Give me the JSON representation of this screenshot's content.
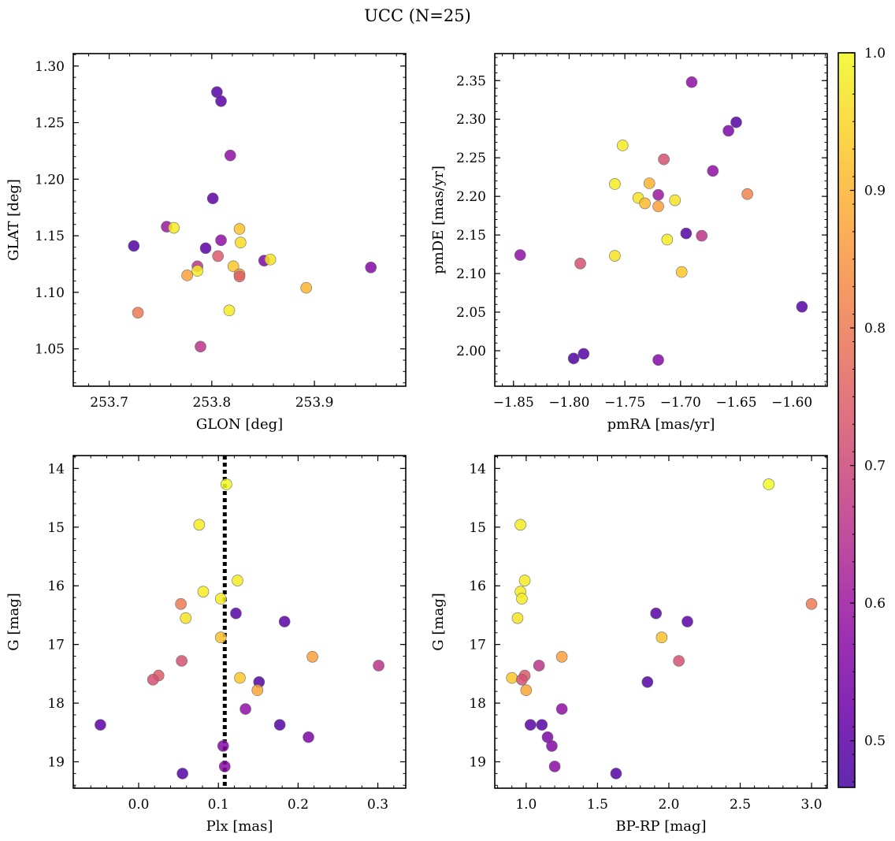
{
  "title": "UCC (N=25)",
  "colorbar": {
    "range": [
      0.466,
      1.0
    ],
    "ticks": [
      0.5,
      0.6,
      0.7,
      0.8,
      0.9,
      1.0
    ],
    "tick_labels": [
      "0.5",
      "0.6",
      "0.7",
      "0.8",
      "0.9",
      "1.0"
    ],
    "colormap": "plasma"
  },
  "chart_data": [
    {
      "type": "scatter",
      "xlabel": "GLON [deg]",
      "ylabel": "GLAT [deg]",
      "xlim": [
        253.665,
        253.989
      ],
      "ylim": [
        1.017,
        1.311
      ],
      "x_ticks": [
        253.7,
        253.8,
        253.9
      ],
      "x_tick_labels": [
        "253.7",
        "253.8",
        "253.9"
      ],
      "y_ticks": [
        1.05,
        1.1,
        1.15,
        1.2,
        1.25,
        1.3
      ],
      "y_tick_labels": [
        "1.05",
        "1.10",
        "1.15",
        "1.20",
        "1.25",
        "1.30"
      ],
      "invert_y": false,
      "points": [
        {
          "x": 253.805,
          "y": 1.277,
          "c": 0.49
        },
        {
          "x": 253.809,
          "y": 1.269,
          "c": 0.5
        },
        {
          "x": 253.818,
          "y": 1.221,
          "c": 0.58
        },
        {
          "x": 253.801,
          "y": 1.183,
          "c": 0.5
        },
        {
          "x": 253.756,
          "y": 1.158,
          "c": 0.6
        },
        {
          "x": 253.763,
          "y": 1.157,
          "c": 0.98
        },
        {
          "x": 253.827,
          "y": 1.156,
          "c": 0.92
        },
        {
          "x": 253.809,
          "y": 1.146,
          "c": 0.58
        },
        {
          "x": 253.828,
          "y": 1.144,
          "c": 0.96
        },
        {
          "x": 253.724,
          "y": 1.141,
          "c": 0.48
        },
        {
          "x": 253.794,
          "y": 1.139,
          "c": 0.5
        },
        {
          "x": 253.806,
          "y": 1.132,
          "c": 0.74
        },
        {
          "x": 253.851,
          "y": 1.128,
          "c": 0.55
        },
        {
          "x": 253.857,
          "y": 1.129,
          "c": 0.97
        },
        {
          "x": 253.786,
          "y": 1.123,
          "c": 0.66
        },
        {
          "x": 253.821,
          "y": 1.123,
          "c": 0.93
        },
        {
          "x": 253.955,
          "y": 1.122,
          "c": 0.56
        },
        {
          "x": 253.786,
          "y": 1.119,
          "c": 0.98
        },
        {
          "x": 253.827,
          "y": 1.116,
          "c": 0.85
        },
        {
          "x": 253.776,
          "y": 1.115,
          "c": 0.87
        },
        {
          "x": 253.827,
          "y": 1.114,
          "c": 0.75
        },
        {
          "x": 253.892,
          "y": 1.104,
          "c": 0.9
        },
        {
          "x": 253.817,
          "y": 1.084,
          "c": 0.98
        },
        {
          "x": 253.728,
          "y": 1.082,
          "c": 0.8
        },
        {
          "x": 253.789,
          "y": 1.052,
          "c": 0.66
        }
      ]
    },
    {
      "type": "scatter",
      "xlabel": "pmRA [mas/yr]",
      "ylabel": "pmDE [mas/yr]",
      "xlim": [
        -1.8668,
        -1.5683
      ],
      "ylim": [
        1.954,
        2.385
      ],
      "x_ticks": [
        -1.85,
        -1.8,
        -1.75,
        -1.7,
        -1.65,
        -1.6
      ],
      "x_tick_labels": [
        "−1.85",
        "−1.80",
        "−1.75",
        "−1.70",
        "−1.65",
        "−1.60"
      ],
      "y_ticks": [
        2.0,
        2.05,
        2.1,
        2.15,
        2.2,
        2.25,
        2.3,
        2.35
      ],
      "y_tick_labels": [
        "2.00",
        "2.05",
        "2.10",
        "2.15",
        "2.20",
        "2.25",
        "2.30",
        "2.35"
      ],
      "invert_y": false,
      "points": [
        {
          "x": -1.69,
          "y": 2.348,
          "c": 0.58
        },
        {
          "x": -1.65,
          "y": 2.296,
          "c": 0.49
        },
        {
          "x": -1.657,
          "y": 2.285,
          "c": 0.55
        },
        {
          "x": -1.752,
          "y": 2.266,
          "c": 0.98
        },
        {
          "x": -1.715,
          "y": 2.248,
          "c": 0.72
        },
        {
          "x": -1.671,
          "y": 2.233,
          "c": 0.58
        },
        {
          "x": -1.728,
          "y": 2.217,
          "c": 0.9
        },
        {
          "x": -1.759,
          "y": 2.216,
          "c": 0.98
        },
        {
          "x": -1.64,
          "y": 2.203,
          "c": 0.82
        },
        {
          "x": -1.72,
          "y": 2.202,
          "c": 0.6
        },
        {
          "x": -1.738,
          "y": 2.198,
          "c": 0.97
        },
        {
          "x": -1.705,
          "y": 2.195,
          "c": 0.97
        },
        {
          "x": -1.732,
          "y": 2.191,
          "c": 0.91
        },
        {
          "x": -1.72,
          "y": 2.187,
          "c": 0.87
        },
        {
          "x": -1.695,
          "y": 2.152,
          "c": 0.49
        },
        {
          "x": -1.681,
          "y": 2.149,
          "c": 0.66
        },
        {
          "x": -1.712,
          "y": 2.144,
          "c": 0.98
        },
        {
          "x": -1.844,
          "y": 2.124,
          "c": 0.58
        },
        {
          "x": -1.759,
          "y": 2.123,
          "c": 0.97
        },
        {
          "x": -1.79,
          "y": 2.113,
          "c": 0.72
        },
        {
          "x": -1.699,
          "y": 2.102,
          "c": 0.93
        },
        {
          "x": -1.591,
          "y": 2.057,
          "c": 0.49
        },
        {
          "x": -1.787,
          "y": 1.996,
          "c": 0.49
        },
        {
          "x": -1.796,
          "y": 1.99,
          "c": 0.48
        },
        {
          "x": -1.72,
          "y": 1.988,
          "c": 0.56
        }
      ]
    },
    {
      "type": "scatter",
      "xlabel": "Plx [mas]",
      "ylabel": "G [mag]",
      "xlim": [
        -0.082,
        0.335
      ],
      "ylim": [
        13.78,
        19.45
      ],
      "x_ticks": [
        0.0,
        0.1,
        0.2,
        0.3
      ],
      "x_tick_labels": [
        "0.0",
        "0.1",
        "0.2",
        "0.3"
      ],
      "y_ticks": [
        14,
        15,
        16,
        17,
        18,
        19
      ],
      "y_tick_labels": [
        "14",
        "15",
        "16",
        "17",
        "18",
        "19"
      ],
      "invert_y": true,
      "vline": 0.108,
      "points": [
        {
          "x": 0.11,
          "y": 14.27,
          "c": 1.0
        },
        {
          "x": 0.076,
          "y": 14.96,
          "c": 0.98
        },
        {
          "x": 0.124,
          "y": 15.91,
          "c": 0.98
        },
        {
          "x": 0.081,
          "y": 16.1,
          "c": 0.98
        },
        {
          "x": 0.103,
          "y": 16.22,
          "c": 0.98
        },
        {
          "x": 0.053,
          "y": 16.31,
          "c": 0.8
        },
        {
          "x": 0.122,
          "y": 16.47,
          "c": 0.49
        },
        {
          "x": 0.059,
          "y": 16.55,
          "c": 0.97
        },
        {
          "x": 0.183,
          "y": 16.61,
          "c": 0.5
        },
        {
          "x": 0.103,
          "y": 16.88,
          "c": 0.92
        },
        {
          "x": 0.218,
          "y": 17.21,
          "c": 0.87
        },
        {
          "x": 0.054,
          "y": 17.28,
          "c": 0.72
        },
        {
          "x": 0.301,
          "y": 17.36,
          "c": 0.66
        },
        {
          "x": 0.025,
          "y": 17.53,
          "c": 0.74
        },
        {
          "x": 0.127,
          "y": 17.57,
          "c": 0.93
        },
        {
          "x": 0.018,
          "y": 17.6,
          "c": 0.72
        },
        {
          "x": 0.151,
          "y": 17.64,
          "c": 0.49
        },
        {
          "x": 0.149,
          "y": 17.78,
          "c": 0.88
        },
        {
          "x": 0.134,
          "y": 18.1,
          "c": 0.58
        },
        {
          "x": -0.048,
          "y": 18.37,
          "c": 0.5
        },
        {
          "x": 0.177,
          "y": 18.37,
          "c": 0.49
        },
        {
          "x": 0.213,
          "y": 18.58,
          "c": 0.55
        },
        {
          "x": 0.106,
          "y": 18.73,
          "c": 0.56
        },
        {
          "x": 0.108,
          "y": 19.08,
          "c": 0.57
        },
        {
          "x": 0.055,
          "y": 19.2,
          "c": 0.49
        }
      ]
    },
    {
      "type": "scatter",
      "xlabel": "BP-RP [mag]",
      "ylabel": "G [mag]",
      "xlim": [
        0.78,
        3.11
      ],
      "ylim": [
        13.78,
        19.45
      ],
      "x_ticks": [
        1.0,
        1.5,
        2.0,
        2.5,
        3.0
      ],
      "x_tick_labels": [
        "1.0",
        "1.5",
        "2.0",
        "2.5",
        "3.0"
      ],
      "y_ticks": [
        14,
        15,
        16,
        17,
        18,
        19
      ],
      "y_tick_labels": [
        "14",
        "15",
        "16",
        "17",
        "18",
        "19"
      ],
      "invert_y": true,
      "points": [
        {
          "x": 2.7,
          "y": 14.27,
          "c": 1.0
        },
        {
          "x": 0.96,
          "y": 14.96,
          "c": 0.98
        },
        {
          "x": 0.99,
          "y": 15.91,
          "c": 0.98
        },
        {
          "x": 0.96,
          "y": 16.1,
          "c": 0.98
        },
        {
          "x": 0.97,
          "y": 16.22,
          "c": 0.98
        },
        {
          "x": 3.0,
          "y": 16.31,
          "c": 0.8
        },
        {
          "x": 1.91,
          "y": 16.47,
          "c": 0.49
        },
        {
          "x": 0.94,
          "y": 16.55,
          "c": 0.97
        },
        {
          "x": 2.13,
          "y": 16.61,
          "c": 0.5
        },
        {
          "x": 1.95,
          "y": 16.88,
          "c": 0.92
        },
        {
          "x": 1.25,
          "y": 17.21,
          "c": 0.87
        },
        {
          "x": 2.07,
          "y": 17.28,
          "c": 0.72
        },
        {
          "x": 1.09,
          "y": 17.36,
          "c": 0.66
        },
        {
          "x": 0.99,
          "y": 17.53,
          "c": 0.74
        },
        {
          "x": 0.9,
          "y": 17.57,
          "c": 0.93
        },
        {
          "x": 0.97,
          "y": 17.6,
          "c": 0.72
        },
        {
          "x": 1.85,
          "y": 17.64,
          "c": 0.49
        },
        {
          "x": 1.0,
          "y": 17.78,
          "c": 0.88
        },
        {
          "x": 1.25,
          "y": 18.1,
          "c": 0.58
        },
        {
          "x": 1.03,
          "y": 18.37,
          "c": 0.5
        },
        {
          "x": 1.11,
          "y": 18.37,
          "c": 0.49
        },
        {
          "x": 1.15,
          "y": 18.58,
          "c": 0.55
        },
        {
          "x": 1.18,
          "y": 18.73,
          "c": 0.56
        },
        {
          "x": 1.2,
          "y": 19.08,
          "c": 0.57
        },
        {
          "x": 1.63,
          "y": 19.2,
          "c": 0.49
        }
      ]
    }
  ]
}
